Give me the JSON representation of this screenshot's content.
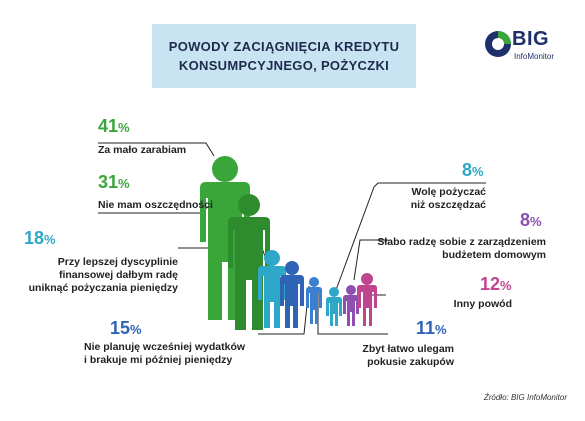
{
  "title_lines": [
    "POWODY ZACIĄGNIĘCIA KREDYTU",
    "KONSUMPCYJNEGO, POŻYCZKI"
  ],
  "logo": {
    "big": "BIG",
    "sub": "InfoMonitor"
  },
  "source": "Źródło: BIG InfoMonitor",
  "colors": {
    "green": "#3aa63a",
    "teal": "#2fa7c9",
    "blue": "#2f63b5",
    "purple": "#8e4fb0",
    "pink": "#c0458f",
    "magenta": "#8b3d8c",
    "title_bg": "#c8e4f3"
  },
  "chart_data": {
    "type": "pictograph",
    "title": "POWODY ZACIĄGNIĘCIA KREDYTU KONSUMPCYJNEGO, POŻYCZKI",
    "unit": "%",
    "categories": [
      {
        "label": "Za mało zarabiam",
        "value": 41,
        "color": "#3aa63a"
      },
      {
        "label": "Nie mam oszczędności",
        "value": 31,
        "color": "#3aa63a"
      },
      {
        "label": "Przy lepszej dyscyplinie finansowej dałbym radę uniknąć pożyczania pieniędzy",
        "value": 18,
        "color": "#2fa7c9"
      },
      {
        "label": "Nie planuję wcześniej wydatków i brakuje mi później pieniędzy",
        "value": 15,
        "color": "#2f63b5"
      },
      {
        "label": "Wolę pożyczać niż oszczędzać",
        "value": 8,
        "color": "#2fa7c9"
      },
      {
        "label": "Słabo radzę sobie z zarządzeniem budżetem domowym",
        "value": 8,
        "color": "#8e4fb0"
      },
      {
        "label": "Inny powód",
        "value": 12,
        "color": "#c0458f"
      },
      {
        "label": "Zbyt łatwo ulegam pokusie zakupów",
        "value": 11,
        "color": "#2f63b5"
      }
    ],
    "items": [
      {
        "pct": "41",
        "lines": [
          "Za mało zarabiam"
        ]
      },
      {
        "pct": "31",
        "lines": [
          "Nie mam oszczędności"
        ]
      },
      {
        "pct": "18",
        "lines": [
          "Przy lepszej dyscyplinie",
          "finansowej dałbym radę",
          "uniknąć pożyczania pieniędzy"
        ]
      },
      {
        "pct": "15",
        "lines": [
          "Nie planuję wcześniej wydatków",
          "i brakuje mi później pieniędzy"
        ]
      },
      {
        "pct": "8",
        "lines": [
          "Wolę pożyczać",
          "niż oszczędzać"
        ]
      },
      {
        "pct": "8",
        "lines": [
          "Słabo radzę sobie z zarządzeniem",
          "budżetem domowym"
        ]
      },
      {
        "pct": "12",
        "lines": [
          "Inny powód"
        ]
      },
      {
        "pct": "11",
        "lines": [
          "Zbyt łatwo ulegam",
          "pokusie zakupów"
        ]
      }
    ]
  }
}
